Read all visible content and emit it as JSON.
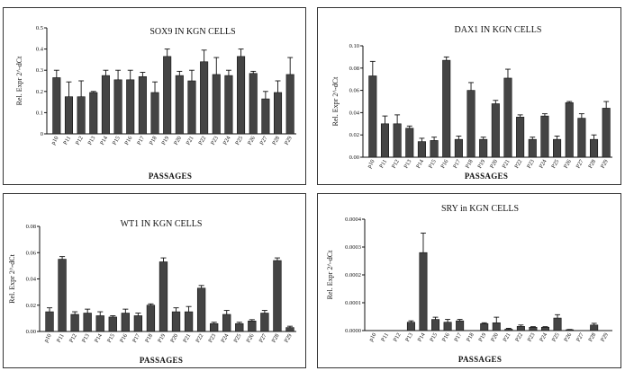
{
  "chart_data": [
    {
      "type": "bar",
      "title": "SOX9 IN KGN CELLS",
      "xlabel": "PASSAGES",
      "ylabel": "Rel. Expr 2^-dCt",
      "ylim": [
        0,
        0.5
      ],
      "yticks": [
        "0",
        "0.1",
        "0.2",
        "0.3",
        "0.4",
        "0.5"
      ],
      "categories": [
        "p10",
        "P11",
        "P12",
        "P13",
        "P14",
        "P15",
        "P16",
        "P17",
        "P18",
        "P19",
        "P20",
        "P21",
        "P22",
        "P23",
        "P24",
        "P25",
        "P26",
        "P27",
        "P28",
        "P29"
      ],
      "values": [
        0.265,
        0.175,
        0.175,
        0.195,
        0.275,
        0.255,
        0.255,
        0.27,
        0.195,
        0.365,
        0.275,
        0.25,
        0.34,
        0.28,
        0.275,
        0.365,
        0.285,
        0.165,
        0.195,
        0.28
      ],
      "errors": [
        0.035,
        0.07,
        0.075,
        0.005,
        0.025,
        0.045,
        0.045,
        0.02,
        0.05,
        0.035,
        0.02,
        0.05,
        0.055,
        0.08,
        0.025,
        0.035,
        0.01,
        0.035,
        0.055,
        0.08
      ]
    },
    {
      "type": "bar",
      "title": "DAX1 IN KGN CELLS",
      "xlabel": "PASSAGES",
      "ylabel": "Rel. Expr 2^-dCt",
      "ylim": [
        0,
        0.1
      ],
      "yticks": [
        "0.00",
        "0.02",
        "0.04",
        "0.06",
        "0.08",
        "0.10"
      ],
      "categories": [
        "p10",
        "P11",
        "P12",
        "P13",
        "P14",
        "P15",
        "P16",
        "P17",
        "P18",
        "P19",
        "P20",
        "P21",
        "P22",
        "P23",
        "P24",
        "P25",
        "P26",
        "P27",
        "P28",
        "P29"
      ],
      "values": [
        0.073,
        0.03,
        0.03,
        0.026,
        0.014,
        0.015,
        0.087,
        0.016,
        0.06,
        0.016,
        0.048,
        0.071,
        0.036,
        0.016,
        0.037,
        0.016,
        0.049,
        0.035,
        0.016,
        0.044
      ],
      "errors": [
        0.013,
        0.007,
        0.008,
        0.002,
        0.003,
        0.003,
        0.003,
        0.003,
        0.007,
        0.002,
        0.003,
        0.008,
        0.002,
        0.002,
        0.002,
        0.003,
        0.001,
        0.004,
        0.004,
        0.006
      ]
    },
    {
      "type": "bar",
      "title": "WT1 IN KGN CELLS",
      "xlabel": "PASSAGES",
      "ylabel": "Rel. Expr 2^-dCt",
      "ylim": [
        0,
        0.08
      ],
      "yticks": [
        "0.00",
        "0.02",
        "0.04",
        "0.06",
        "0.08"
      ],
      "categories": [
        "p10",
        "P11",
        "P12",
        "P13",
        "P14",
        "P15",
        "P16",
        "P17",
        "P18",
        "P19",
        "P20",
        "P21",
        "P22",
        "P23",
        "P24",
        "P25",
        "P26",
        "P27",
        "P28",
        "P29"
      ],
      "values": [
        0.015,
        0.055,
        0.013,
        0.014,
        0.012,
        0.011,
        0.014,
        0.012,
        0.02,
        0.053,
        0.015,
        0.015,
        0.033,
        0.006,
        0.013,
        0.006,
        0.008,
        0.014,
        0.054,
        0.003
      ],
      "errors": [
        0.003,
        0.002,
        0.002,
        0.003,
        0.003,
        0.001,
        0.003,
        0.002,
        0.001,
        0.003,
        0.003,
        0.004,
        0.002,
        0.001,
        0.003,
        0.001,
        0.001,
        0.002,
        0.002,
        0.001
      ]
    },
    {
      "type": "bar",
      "title": "SRY in KGN CELLS",
      "xlabel": "PASSAGES",
      "ylabel": "Rel. Expr 2^-dCt",
      "ylim": [
        0,
        0.0004
      ],
      "yticks": [
        "0.0000",
        "0.0001",
        "0.0002",
        "0.0003",
        "0.0004"
      ],
      "categories": [
        "p10",
        "P11",
        "P12",
        "P13",
        "P14",
        "P15",
        "P16",
        "P17",
        "P18",
        "P19",
        "P20",
        "P21",
        "P22",
        "P23",
        "P24",
        "P25",
        "P26",
        "P27",
        "P28",
        "P29"
      ],
      "values": [
        0.0,
        0.0,
        0.0,
        3e-05,
        0.00028,
        4e-05,
        3e-05,
        3.5e-05,
        0.0,
        2.5e-05,
        2.8e-05,
        5e-06,
        1.5e-05,
        1.2e-05,
        1.2e-05,
        4.5e-05,
        3e-06,
        0.0,
        2e-05,
        0.0
      ],
      "errors": [
        0.0,
        0.0,
        0.0,
        5e-06,
        7e-05,
        8e-06,
        1e-05,
        5e-06,
        0.0,
        3e-06,
        2e-05,
        3e-06,
        5e-06,
        2e-06,
        2e-06,
        1.2e-05,
        1e-06,
        0.0,
        6e-06,
        0.0
      ]
    }
  ]
}
